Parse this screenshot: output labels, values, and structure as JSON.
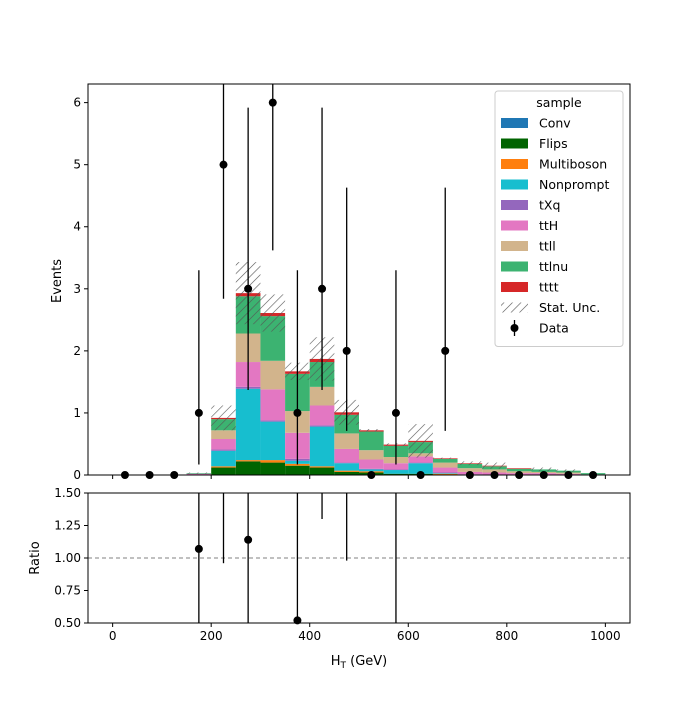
{
  "chart_data": {
    "type": "bar",
    "stacked": true,
    "x_edges": [
      150,
      200,
      250,
      300,
      350,
      400,
      450,
      500,
      550,
      600,
      650,
      700,
      750,
      800,
      850,
      900,
      950,
      1000
    ],
    "stack": [
      {
        "name": "Conv",
        "color": "#1f77b4",
        "values": [
          0,
          0,
          0,
          0,
          0,
          0,
          0,
          0,
          0,
          0,
          0,
          0,
          0,
          0,
          0,
          0,
          0
        ]
      },
      {
        "name": "Flips",
        "color": "#006400",
        "values": [
          0,
          0.12,
          0.22,
          0.2,
          0.15,
          0.12,
          0.05,
          0.04,
          0.02,
          0.02,
          0,
          0,
          0,
          0,
          0,
          0,
          0
        ]
      },
      {
        "name": "Multiboson",
        "color": "#ff7f0e",
        "values": [
          0,
          0.02,
          0.02,
          0.04,
          0.03,
          0.02,
          0.02,
          0.02,
          0,
          0,
          0.02,
          0,
          0,
          0,
          0,
          0,
          0
        ]
      },
      {
        "name": "Nonprompt",
        "color": "#17becf",
        "values": [
          0,
          0.25,
          1.15,
          0.62,
          0.05,
          0.64,
          0.12,
          0.03,
          0.06,
          0.17,
          0.01,
          0.01,
          0,
          0,
          0,
          0,
          0
        ]
      },
      {
        "name": "tXq",
        "color": "#9467bd",
        "values": [
          0,
          0.02,
          0.03,
          0.02,
          0.03,
          0.02,
          0.01,
          0.01,
          0.01,
          0.01,
          0.01,
          0,
          0,
          0,
          0,
          0,
          0
        ]
      },
      {
        "name": "ttH",
        "color": "#e377c2",
        "values": [
          0.02,
          0.17,
          0.4,
          0.5,
          0.42,
          0.32,
          0.22,
          0.15,
          0.1,
          0.1,
          0.08,
          0.04,
          0.04,
          0.03,
          0.03,
          0.02,
          0.01
        ]
      },
      {
        "name": "ttll",
        "color": "#d2b48c",
        "values": [
          0,
          0.14,
          0.46,
          0.46,
          0.35,
          0.3,
          0.25,
          0.15,
          0.1,
          0.05,
          0.08,
          0.06,
          0.05,
          0.03,
          0.02,
          0.02,
          0
        ]
      },
      {
        "name": "ttlnu",
        "color": "#3cb371",
        "values": [
          0.01,
          0.18,
          0.6,
          0.72,
          0.6,
          0.4,
          0.3,
          0.3,
          0.18,
          0.18,
          0.06,
          0.07,
          0.05,
          0.04,
          0.04,
          0.03,
          0.02
        ]
      },
      {
        "name": "tttt",
        "color": "#d62728",
        "values": [
          0,
          0.02,
          0.05,
          0.05,
          0.04,
          0.05,
          0.04,
          0.02,
          0.02,
          0.02,
          0.01,
          0.01,
          0.01,
          0.01,
          0,
          0,
          0
        ]
      }
    ],
    "stat_unc": [
      0.01,
      0.2,
      0.5,
      0.3,
      0.14,
      0.35,
      0.2,
      0.02,
      0.02,
      0.27,
      0.01,
      0.03,
      0.05,
      0,
      0.03,
      0.02,
      0
    ],
    "data": {
      "name": "Data",
      "x": [
        25,
        75,
        125,
        175,
        225,
        275,
        325,
        375,
        425,
        475,
        525,
        575,
        625,
        675,
        725,
        775,
        825,
        875,
        925,
        975
      ],
      "y": [
        0,
        0,
        0,
        1,
        5,
        3,
        6,
        1,
        3,
        2,
        0,
        1,
        0,
        2,
        0,
        0,
        0,
        0,
        0,
        0
      ],
      "err_low": [
        0,
        0,
        0,
        0.83,
        2.16,
        1.63,
        2.38,
        0.83,
        1.63,
        1.29,
        0,
        0.83,
        0,
        1.29,
        0,
        0,
        0,
        0,
        0,
        0
      ],
      "err_high": [
        0,
        0,
        0,
        2.3,
        3.38,
        2.92,
        3.6,
        2.3,
        2.92,
        2.63,
        0,
        2.3,
        0,
        2.63,
        0,
        0,
        0,
        0,
        0,
        0
      ]
    },
    "ratio": {
      "x": [
        175,
        225,
        275,
        375,
        425,
        475,
        575
      ],
      "y": [
        1.07,
        null,
        1.14,
        0.52,
        null,
        null,
        null
      ],
      "err_low": [
        null,
        null,
        null,
        null,
        null,
        null,
        null
      ],
      "bar_from": [
        0.5,
        0.96,
        0.5,
        0.5,
        1.3,
        0.98,
        0.5
      ],
      "bar_to": [
        1.5,
        1.5,
        1.5,
        1.5,
        1.5,
        1.5,
        1.5
      ],
      "reference": 1.0
    },
    "xlim": [
      -50,
      1050
    ],
    "ylim_main": [
      0,
      6.3
    ],
    "ylim_ratio": [
      0.5,
      1.5
    ],
    "x_ticks": [
      "0",
      "200",
      "400",
      "600",
      "800",
      "1000"
    ],
    "x_tick_values": [
      0,
      200,
      400,
      600,
      800,
      1000
    ],
    "y_ticks_main": [
      "0",
      "1",
      "2",
      "3",
      "4",
      "5",
      "6"
    ],
    "y_ticks_ratio": [
      "0.50",
      "0.75",
      "1.00",
      "1.25",
      "1.50"
    ],
    "xlabel": "H$_T$ (GeV)",
    "ylabel_main": "Events",
    "ylabel_ratio": "Ratio",
    "legend": {
      "title": "sample",
      "placement": "top-right",
      "unc_label": "Stat. Unc.",
      "data_label": "Data"
    }
  },
  "xlabel_main": "H",
  "xlabel_sub": "T",
  "xlabel_unit": " (GeV)"
}
